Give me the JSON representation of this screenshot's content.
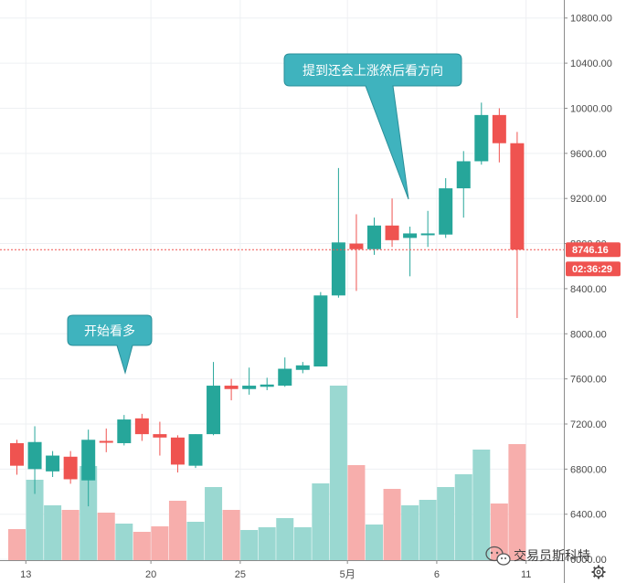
{
  "chart_data": {
    "type": "candlestick",
    "y_axis_ticks": [
      "6000.00",
      "6400.00",
      "6800.00",
      "7200.00",
      "7600.00",
      "8000.00",
      "8400.00",
      "8800.00",
      "9200.00",
      "9600.00",
      "10000.00",
      "10400.00",
      "10800.00"
    ],
    "ylim": [
      5790,
      10960
    ],
    "x_axis_ticks": [
      "13",
      "20",
      "25",
      "5月",
      "6",
      "11"
    ],
    "candles": [
      {
        "o": 7030,
        "h": 7060,
        "l": 6750,
        "c": 6830
      },
      {
        "o": 6800,
        "h": 7180,
        "l": 6580,
        "c": 7040
      },
      {
        "o": 6780,
        "h": 6960,
        "l": 6730,
        "c": 6920
      },
      {
        "o": 6910,
        "h": 6960,
        "l": 6670,
        "c": 6710
      },
      {
        "o": 6700,
        "h": 7150,
        "l": 6470,
        "c": 7060
      },
      {
        "o": 7050,
        "h": 7160,
        "l": 6950,
        "c": 7040
      },
      {
        "o": 7030,
        "h": 7280,
        "l": 7010,
        "c": 7240
      },
      {
        "o": 7250,
        "h": 7290,
        "l": 7050,
        "c": 7110
      },
      {
        "o": 7110,
        "h": 7220,
        "l": 6920,
        "c": 7080
      },
      {
        "o": 7080,
        "h": 7100,
        "l": 6770,
        "c": 6840
      },
      {
        "o": 6830,
        "h": 7110,
        "l": 6810,
        "c": 7110
      },
      {
        "o": 7110,
        "h": 7750,
        "l": 7100,
        "c": 7540
      },
      {
        "o": 7540,
        "h": 7600,
        "l": 7410,
        "c": 7510
      },
      {
        "o": 7510,
        "h": 7700,
        "l": 7460,
        "c": 7540
      },
      {
        "o": 7530,
        "h": 7610,
        "l": 7500,
        "c": 7550
      },
      {
        "o": 7540,
        "h": 7790,
        "l": 7530,
        "c": 7690
      },
      {
        "o": 7680,
        "h": 7750,
        "l": 7650,
        "c": 7720
      },
      {
        "o": 7710,
        "h": 8370,
        "l": 7710,
        "c": 8340
      },
      {
        "o": 8340,
        "h": 9470,
        "l": 8320,
        "c": 8810
      },
      {
        "o": 8800,
        "h": 9060,
        "l": 8380,
        "c": 8750
      },
      {
        "o": 8750,
        "h": 9030,
        "l": 8700,
        "c": 8960
      },
      {
        "o": 8960,
        "h": 9200,
        "l": 8770,
        "c": 8830
      },
      {
        "o": 8850,
        "h": 8950,
        "l": 8510,
        "c": 8890
      },
      {
        "o": 8890,
        "h": 9090,
        "l": 8770,
        "c": 8890
      },
      {
        "o": 8880,
        "h": 9380,
        "l": 8850,
        "c": 9290
      },
      {
        "o": 9290,
        "h": 9620,
        "l": 9030,
        "c": 9530
      },
      {
        "o": 9530,
        "h": 10050,
        "l": 9500,
        "c": 9940
      },
      {
        "o": 9940,
        "h": 10000,
        "l": 9520,
        "c": 9690
      },
      {
        "o": 9690,
        "h": 9790,
        "l": 8140,
        "c": 8746
      }
    ],
    "volumes": [
      34,
      88,
      60,
      55,
      103,
      52,
      40,
      31,
      37,
      65,
      42,
      80,
      55,
      33,
      36,
      46,
      36,
      84,
      191,
      104,
      39,
      78,
      60,
      66,
      80,
      94,
      121,
      62,
      127
    ],
    "current_price": "8746.16",
    "countdown": "02:36:29",
    "up_color": "#26a69a",
    "down_color": "#ef5350",
    "volume_up_color": "#9ad8d1",
    "volume_down_color": "#f7aeac"
  },
  "annotations": [
    {
      "text": "开始看多"
    },
    {
      "text": "提到还会上涨然后看方向"
    }
  ],
  "watermark": {
    "text": "交易员斯科特"
  },
  "icons": {
    "settings": "gear-icon",
    "watermark": "wechat-icon"
  }
}
